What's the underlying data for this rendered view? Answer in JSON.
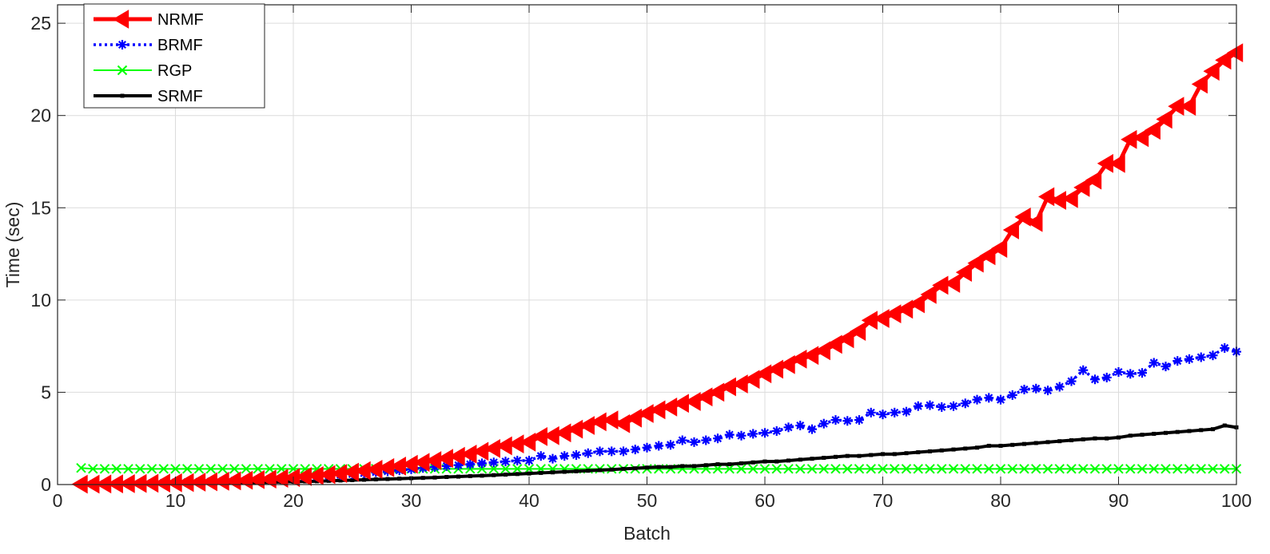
{
  "chart_data": {
    "type": "line",
    "title": "",
    "xlabel": "Batch",
    "ylabel": "Time (sec)",
    "xlim": [
      0,
      100
    ],
    "ylim": [
      0,
      26
    ],
    "xticks": [
      0,
      10,
      20,
      30,
      40,
      50,
      60,
      70,
      80,
      90,
      100
    ],
    "yticks": [
      0,
      5,
      10,
      15,
      20,
      25
    ],
    "grid": true,
    "legend_position": "top-left",
    "x": [
      2,
      3,
      4,
      5,
      6,
      7,
      8,
      9,
      10,
      11,
      12,
      13,
      14,
      15,
      16,
      17,
      18,
      19,
      20,
      21,
      22,
      23,
      24,
      25,
      26,
      27,
      28,
      29,
      30,
      31,
      32,
      33,
      34,
      35,
      36,
      37,
      38,
      39,
      40,
      41,
      42,
      43,
      44,
      45,
      46,
      47,
      48,
      49,
      50,
      51,
      52,
      53,
      54,
      55,
      56,
      57,
      58,
      59,
      60,
      61,
      62,
      63,
      64,
      65,
      66,
      67,
      68,
      69,
      70,
      71,
      72,
      73,
      74,
      75,
      76,
      77,
      78,
      79,
      80,
      81,
      82,
      83,
      84,
      85,
      86,
      87,
      88,
      89,
      90,
      91,
      92,
      93,
      94,
      95,
      96,
      97,
      98,
      99,
      100
    ],
    "series": [
      {
        "name": "NRMF",
        "color": "#ff0000",
        "marker": "triangle-left",
        "line": "solid",
        "values": [
          0.02,
          0.02,
          0.03,
          0.04,
          0.05,
          0.06,
          0.07,
          0.08,
          0.1,
          0.11,
          0.13,
          0.15,
          0.18,
          0.2,
          0.23,
          0.27,
          0.3,
          0.34,
          0.38,
          0.43,
          0.48,
          0.54,
          0.6,
          0.67,
          0.75,
          0.83,
          0.92,
          1.0,
          1.1,
          1.2,
          1.3,
          1.42,
          1.53,
          1.65,
          1.8,
          1.95,
          2.1,
          2.2,
          2.3,
          2.6,
          2.65,
          2.8,
          3.0,
          3.2,
          3.4,
          3.5,
          3.3,
          3.6,
          3.85,
          4.05,
          4.2,
          4.4,
          4.5,
          4.75,
          5.0,
          5.3,
          5.45,
          5.7,
          6.0,
          6.25,
          6.5,
          6.8,
          7.0,
          7.25,
          7.6,
          7.9,
          8.3,
          8.9,
          9.0,
          9.25,
          9.5,
          9.8,
          10.3,
          10.8,
          10.9,
          11.5,
          12.0,
          12.4,
          12.8,
          13.8,
          14.5,
          14.2,
          15.6,
          15.4,
          15.5,
          16.1,
          16.5,
          17.4,
          17.4,
          18.7,
          18.8,
          19.2,
          19.8,
          20.5,
          20.5,
          21.7,
          22.4,
          23.0,
          23.4
        ]
      },
      {
        "name": "BRMF",
        "color": "#0000ff",
        "marker": "star",
        "line": "dotted",
        "values": [
          0.02,
          0.03,
          0.04,
          0.05,
          0.06,
          0.07,
          0.08,
          0.1,
          0.12,
          0.13,
          0.15,
          0.17,
          0.19,
          0.21,
          0.24,
          0.27,
          0.3,
          0.33,
          0.37,
          0.4,
          0.44,
          0.48,
          0.52,
          0.57,
          0.62,
          0.67,
          0.72,
          0.77,
          0.83,
          0.9,
          0.95,
          1.0,
          1.05,
          1.1,
          1.15,
          1.2,
          1.25,
          1.3,
          1.3,
          1.55,
          1.4,
          1.55,
          1.6,
          1.7,
          1.8,
          1.8,
          1.8,
          1.9,
          2.0,
          2.1,
          2.15,
          2.4,
          2.3,
          2.4,
          2.5,
          2.7,
          2.65,
          2.75,
          2.8,
          2.9,
          3.1,
          3.2,
          3.0,
          3.3,
          3.5,
          3.45,
          3.5,
          3.9,
          3.8,
          3.9,
          3.95,
          4.25,
          4.3,
          4.2,
          4.25,
          4.4,
          4.6,
          4.7,
          4.6,
          4.85,
          5.15,
          5.2,
          5.1,
          5.3,
          5.6,
          6.2,
          5.7,
          5.8,
          6.1,
          6.0,
          6.05,
          6.6,
          6.4,
          6.7,
          6.8,
          6.9,
          7.0,
          7.4,
          7.2
        ]
      },
      {
        "name": "RGP",
        "color": "#00ff00",
        "marker": "x",
        "line": "solid",
        "values": [
          0.9,
          0.85,
          0.85,
          0.85,
          0.85,
          0.85,
          0.85,
          0.85,
          0.85,
          0.85,
          0.85,
          0.85,
          0.85,
          0.85,
          0.85,
          0.85,
          0.85,
          0.85,
          0.85,
          0.85,
          0.85,
          0.85,
          0.85,
          0.85,
          0.85,
          0.85,
          0.85,
          0.85,
          0.85,
          0.85,
          0.85,
          0.85,
          0.85,
          0.85,
          0.85,
          0.85,
          0.85,
          0.85,
          0.85,
          0.85,
          0.85,
          0.85,
          0.85,
          0.85,
          0.85,
          0.85,
          0.85,
          0.85,
          0.85,
          0.85,
          0.85,
          0.85,
          0.85,
          0.85,
          0.85,
          0.85,
          0.85,
          0.85,
          0.85,
          0.85,
          0.85,
          0.85,
          0.85,
          0.85,
          0.85,
          0.85,
          0.85,
          0.85,
          0.85,
          0.85,
          0.85,
          0.85,
          0.85,
          0.85,
          0.85,
          0.85,
          0.85,
          0.85,
          0.85,
          0.85,
          0.85,
          0.85,
          0.85,
          0.85,
          0.85,
          0.85,
          0.85,
          0.85,
          0.85,
          0.85,
          0.85,
          0.85,
          0.85,
          0.85,
          0.85,
          0.85,
          0.85,
          0.85,
          0.85
        ]
      },
      {
        "name": "SRMF",
        "color": "#000000",
        "marker": "point",
        "line": "solid",
        "values": [
          0.01,
          0.01,
          0.02,
          0.02,
          0.03,
          0.03,
          0.04,
          0.04,
          0.05,
          0.06,
          0.07,
          0.07,
          0.08,
          0.09,
          0.1,
          0.11,
          0.12,
          0.14,
          0.15,
          0.17,
          0.18,
          0.2,
          0.22,
          0.24,
          0.26,
          0.28,
          0.3,
          0.32,
          0.34,
          0.36,
          0.38,
          0.41,
          0.43,
          0.46,
          0.48,
          0.51,
          0.54,
          0.57,
          0.6,
          0.63,
          0.66,
          0.69,
          0.72,
          0.75,
          0.78,
          0.81,
          0.85,
          0.88,
          0.92,
          0.95,
          0.95,
          1.0,
          1.0,
          1.05,
          1.1,
          1.1,
          1.15,
          1.2,
          1.25,
          1.25,
          1.3,
          1.35,
          1.4,
          1.45,
          1.5,
          1.55,
          1.55,
          1.6,
          1.65,
          1.65,
          1.7,
          1.75,
          1.8,
          1.85,
          1.9,
          1.95,
          2.0,
          2.1,
          2.1,
          2.15,
          2.2,
          2.25,
          2.3,
          2.35,
          2.4,
          2.45,
          2.5,
          2.5,
          2.55,
          2.65,
          2.7,
          2.75,
          2.8,
          2.85,
          2.9,
          2.95,
          3.0,
          3.2,
          3.1
        ]
      }
    ]
  }
}
